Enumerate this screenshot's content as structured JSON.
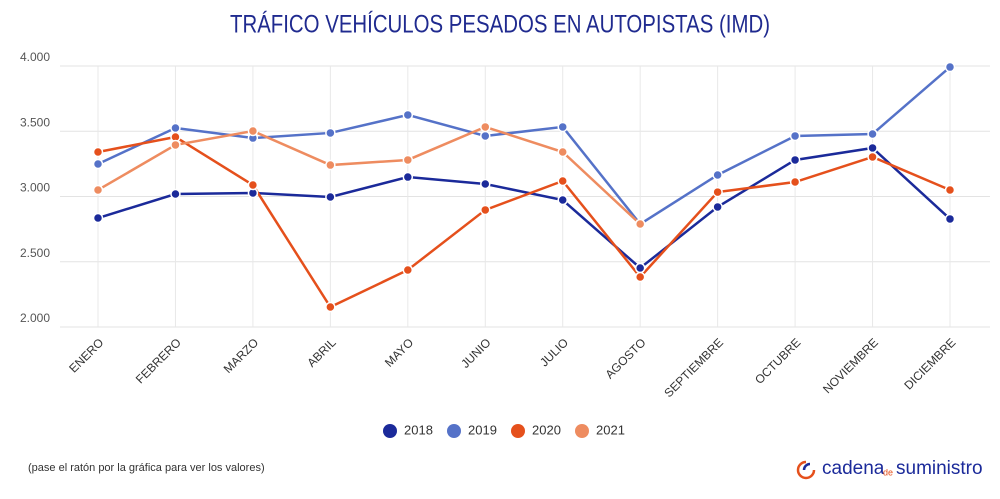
{
  "chart_data": {
    "type": "line",
    "title": "TRÁFICO VEHÍCULOS PESADOS EN AUTOPISTAS (IMD)",
    "categories": [
      "ENERO",
      "FEBRERO",
      "MARZO",
      "ABRIL",
      "MAYO",
      "JUNIO",
      "JULIO",
      "AGOSTO",
      "SEPTIEMBRE",
      "OCTUBRE",
      "NOVIEMBRE",
      "DICIEMBRE"
    ],
    "series": [
      {
        "name": "2018",
        "color": "#1b2a9a",
        "values": [
          2835,
          3019,
          3027,
          2996,
          3149,
          3096,
          2973,
          2452,
          2920,
          3280,
          3372,
          2828
        ]
      },
      {
        "name": "2019",
        "color": "#5572c8",
        "values": [
          3249,
          3525,
          3448,
          3487,
          3625,
          3464,
          3533,
          2789,
          3165,
          3464,
          3479,
          3992
        ]
      },
      {
        "name": "2020",
        "color": "#e5501c",
        "values": [
          3341,
          3456,
          3088,
          2153,
          2437,
          2897,
          3119,
          2383,
          3034,
          3111,
          3303,
          3050
        ]
      },
      {
        "name": "2021",
        "color": "#ee8c60",
        "values": [
          3050,
          3395,
          3502,
          3241,
          3280,
          3533,
          3341,
          2789,
          null,
          null,
          null,
          null
        ]
      }
    ],
    "ylim": [
      2000,
      4000
    ],
    "yticks": [
      {
        "value": 2000,
        "label": "2.000"
      },
      {
        "value": 2500,
        "label": "2.500"
      },
      {
        "value": 3000,
        "label": "3.000"
      },
      {
        "value": 3500,
        "label": "3.500"
      },
      {
        "value": 4000,
        "label": "4.000"
      }
    ],
    "grid": true,
    "legend": "bottom",
    "note": "(pase el ratón por la gráfica para ver los valores)",
    "logo": {
      "part1": "cadena",
      "part2": "de",
      "part3": "suministro"
    }
  }
}
